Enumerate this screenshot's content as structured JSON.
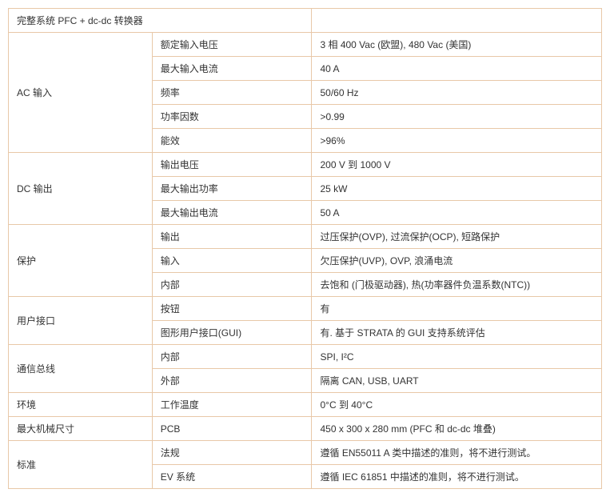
{
  "table": {
    "border_color": "#e8c8a8",
    "text_color": "#333333",
    "font_size": 12,
    "background_color": "#ffffff",
    "header": {
      "title": "完整系统  PFC + dc-dc 转换器",
      "blank": ""
    },
    "sections": [
      {
        "category": "AC 输入",
        "rows": [
          {
            "param": "额定输入电压",
            "value": "3  相 400 Vac (欧盟), 480 Vac (美国)"
          },
          {
            "param": "最大输入电流",
            "value": "40 A"
          },
          {
            "param": "频率",
            "value": "50/60 Hz"
          },
          {
            "param": "功率因数",
            "value": ">0.99"
          },
          {
            "param": "能效",
            "value": ">96%"
          }
        ]
      },
      {
        "category": "DC 输出",
        "rows": [
          {
            "param": "输出电压",
            "value": "200 V 到 1000 V"
          },
          {
            "param": "最大输出功率",
            "value": "25 kW"
          },
          {
            "param": "最大输出电流",
            "value": "50 A"
          }
        ]
      },
      {
        "category": "保护",
        "rows": [
          {
            "param": "输出",
            "value": "过压保护(OVP), 过流保护(OCP), 短路保护"
          },
          {
            "param": "输入",
            "value": "欠压保护(UVP), OVP, 浪涌电流"
          },
          {
            "param": "内部",
            "value": "去饱和 (门极驱动器), 热(功率器件负温系数(NTC))"
          }
        ]
      },
      {
        "category": "用户接口",
        "rows": [
          {
            "param": "按钮",
            "value": "有"
          },
          {
            "param": "图形用户接口(GUI)",
            "value": "有. 基于  STRATA 的 GUI 支持系统评估"
          }
        ]
      },
      {
        "category": "通信总线",
        "rows": [
          {
            "param": "内部",
            "value": "SPI, I²C"
          },
          {
            "param": "外部",
            "value": "隔离  CAN, USB, UART"
          }
        ]
      },
      {
        "category": "环境",
        "rows": [
          {
            "param": "工作温度",
            "value": "0°C 到  40°C"
          }
        ]
      },
      {
        "category": "最大机械尺寸",
        "rows": [
          {
            "param": "PCB",
            "value": "450 x 300 x 280 mm  (PFC 和  dc-dc 堆叠)"
          }
        ]
      },
      {
        "category": "标准",
        "rows": [
          {
            "param": "法规",
            "value": "遵循  EN55011 A  类中描述的准则，将不进行测试。"
          },
          {
            "param": "EV  系统",
            "value": "遵循  IEC 61851  中描述的准则，将不进行测试。"
          }
        ]
      }
    ]
  }
}
